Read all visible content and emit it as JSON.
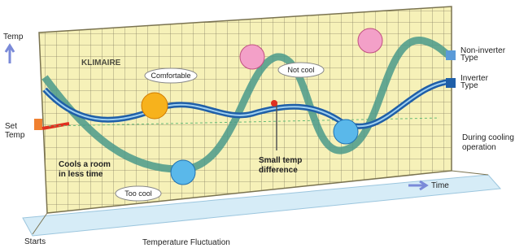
{
  "diagram": {
    "axis_y": "Temp",
    "set_temp": [
      "Set",
      "Temp"
    ],
    "axis_x": "Time",
    "start": "Starts",
    "watermark": "KLIMAIRE",
    "bubbles": [
      "Comfortable",
      "Not cool",
      "Too cool"
    ],
    "notes": [
      [
        "Cools a room",
        "in less time"
      ],
      [
        "Small temp",
        "difference"
      ]
    ],
    "legend": [
      [
        "Non-inverter",
        "Type"
      ],
      [
        "Inverter",
        "Type"
      ]
    ],
    "mode": [
      "During cooling",
      "operation"
    ],
    "caption": "Temperature Fluctuation"
  }
}
